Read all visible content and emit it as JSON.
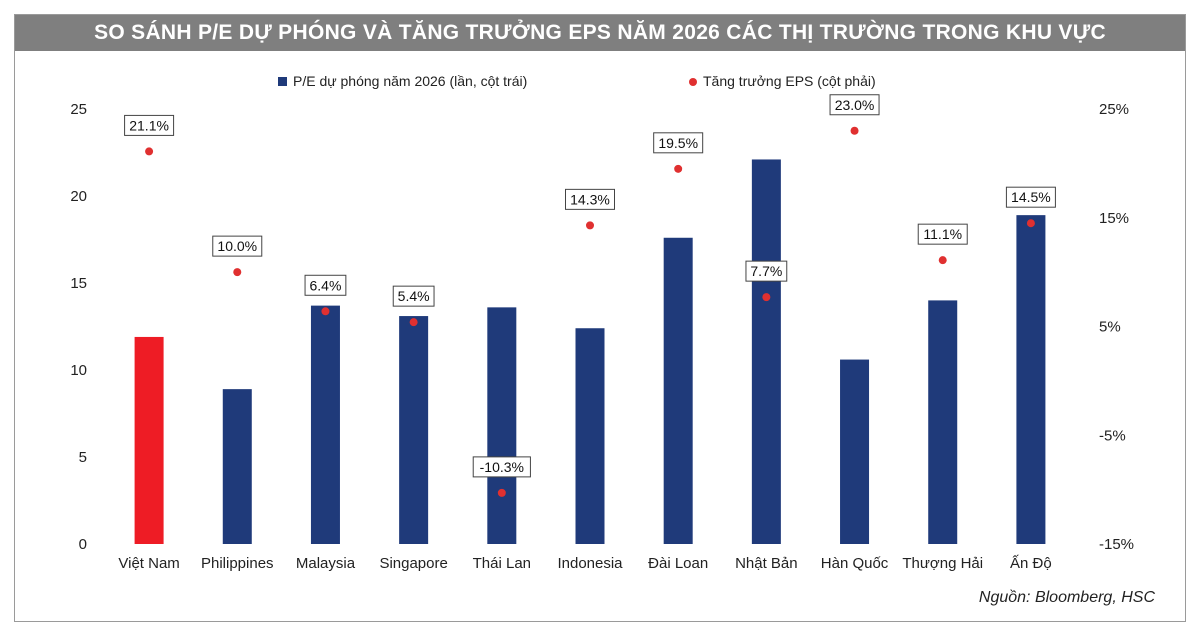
{
  "title": "SO SÁNH P/E DỰ PHÓNG VÀ TĂNG TRƯỞNG EPS NĂM 2026 CÁC THỊ TRƯỜNG TRONG KHU VỰC",
  "source": "Nguồn: Bloomberg, HSC",
  "colors": {
    "bar": "#1f3a7a",
    "bar_highlight": "#ee1c25",
    "dot": "#e03030",
    "title_bg": "#7f7f7f"
  },
  "chart_data": {
    "type": "bar",
    "categories": [
      "Việt Nam",
      "Philippines",
      "Malaysia",
      "Singapore",
      "Thái Lan",
      "Indonesia",
      "Đài Loan",
      "Nhật Bản",
      "Hàn Quốc",
      "Thượng Hải",
      "Ấn Độ"
    ],
    "series": [
      {
        "name": "P/E dự phóng năm 2026 (lần, cột trái)",
        "type": "bar",
        "axis": "left",
        "values": [
          11.9,
          8.9,
          13.7,
          13.1,
          13.6,
          12.4,
          17.6,
          22.1,
          10.6,
          14.0,
          18.9
        ]
      },
      {
        "name": "Tăng trưởng EPS (cột phải)",
        "type": "scatter",
        "axis": "right",
        "values": [
          21.1,
          10.0,
          6.4,
          5.4,
          -10.3,
          14.3,
          19.5,
          7.7,
          23.0,
          11.1,
          14.5
        ],
        "labels": [
          "21.1%",
          "10.0%",
          "6.4%",
          "5.4%",
          "-10.3%",
          "14.3%",
          "19.5%",
          "7.7%",
          "23.0%",
          "11.1%",
          "14.5%"
        ]
      }
    ],
    "highlight_index": 0,
    "y_left": {
      "min": 0,
      "max": 25,
      "ticks": [
        0,
        5,
        10,
        15,
        20,
        25
      ],
      "tick_labels": [
        "0",
        "5",
        "10",
        "15",
        "20",
        "25"
      ]
    },
    "y_right": {
      "min": -15,
      "max": 25,
      "ticks": [
        -15,
        -5,
        5,
        15,
        25
      ],
      "tick_labels": [
        "-15%",
        "-5%",
        "5%",
        "15%",
        "25%"
      ]
    },
    "grid": false,
    "legend_position": "top"
  }
}
